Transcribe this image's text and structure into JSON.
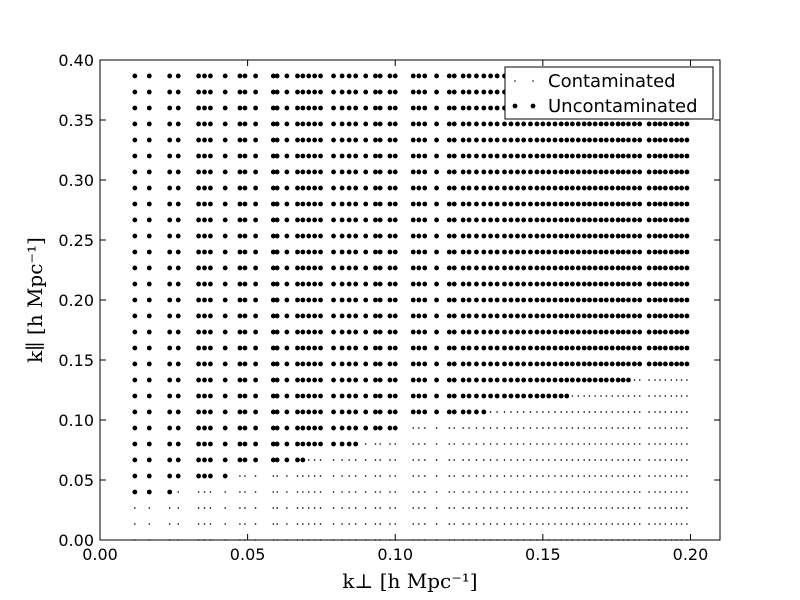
{
  "chart_data": {
    "type": "scatter",
    "xlabel": "k⊥ [h Mpc⁻¹]",
    "ylabel": "k∥ [h Mpc⁻¹]",
    "xlim": [
      0.0,
      0.21
    ],
    "ylim": [
      0.0,
      0.4
    ],
    "x_ticks": [
      "0.00",
      "0.05",
      "0.10",
      "0.15",
      "0.20"
    ],
    "y_ticks": [
      "0.00",
      "0.05",
      "0.10",
      "0.15",
      "0.20",
      "0.25",
      "0.30",
      "0.35",
      "0.40"
    ],
    "legend_position": "top-right",
    "grid": false,
    "series": [
      {
        "name": "Contaminated",
        "marker": "small dot",
        "color": "#000000",
        "description": "points with k_parallel below the wedge boundary"
      },
      {
        "name": "Uncontaminated",
        "marker": "large dot",
        "color": "#000000",
        "description": "points with k_parallel above the wedge boundary"
      }
    ],
    "k_parallel_values": [
      0.0,
      0.0133,
      0.0267,
      0.04,
      0.0533,
      0.0667,
      0.08,
      0.0933,
      0.1067,
      0.12,
      0.1333,
      0.1467,
      0.16,
      0.1733,
      0.1867,
      0.2,
      0.2133,
      0.2267,
      0.24,
      0.2533,
      0.2667,
      0.28,
      0.2933,
      0.3067,
      0.32,
      0.3333,
      0.3467,
      0.36,
      0.3733,
      0.3867
    ],
    "k_perp_columns": [
      {
        "x": 0.0118,
        "n": 1
      },
      {
        "x": 0.0167,
        "n": 1
      },
      {
        "x": 0.0236,
        "n": 1
      },
      {
        "x": 0.0265,
        "n": 1
      },
      {
        "x": 0.0334,
        "n": 1
      },
      {
        "x": 0.0354,
        "n": 1
      },
      {
        "x": 0.0374,
        "n": 1
      },
      {
        "x": 0.0424,
        "n": 1
      },
      {
        "x": 0.0474,
        "n": 1
      },
      {
        "x": 0.0491,
        "n": 1
      },
      {
        "x": 0.0527,
        "n": 1
      },
      {
        "x": 0.0587,
        "n": 1
      },
      {
        "x": 0.06,
        "n": 1
      },
      {
        "x": 0.0633,
        "n": 1
      },
      {
        "x": 0.0669,
        "n": 1
      },
      {
        "x": 0.0687,
        "n": 1
      },
      {
        "x": 0.0707,
        "n": 1
      },
      {
        "x": 0.0727,
        "n": 1
      },
      {
        "x": 0.0747,
        "n": 1
      },
      {
        "x": 0.0791,
        "n": 1
      },
      {
        "x": 0.082,
        "n": 1
      },
      {
        "x": 0.0844,
        "n": 1
      },
      {
        "x": 0.0866,
        "n": 1
      },
      {
        "x": 0.09,
        "n": 1
      },
      {
        "x": 0.0933,
        "n": 1
      },
      {
        "x": 0.0949,
        "n": 1
      },
      {
        "x": 0.0982,
        "n": 1
      },
      {
        "x": 0.1,
        "n": 1
      },
      {
        "x": 0.1061,
        "n": 1
      },
      {
        "x": 0.108,
        "n": 1
      },
      {
        "x": 0.11,
        "n": 1
      },
      {
        "x": 0.114,
        "n": 1
      },
      {
        "x": 0.1183,
        "n": 1
      },
      {
        "x": 0.12,
        "n": 1
      },
      {
        "x": 0.123,
        "n": 1
      },
      {
        "x": 0.125,
        "n": 1
      },
      {
        "x": 0.1275,
        "n": 1
      },
      {
        "x": 0.13,
        "n": 1
      },
      {
        "x": 0.1323,
        "n": 1
      },
      {
        "x": 0.1345,
        "n": 1
      },
      {
        "x": 0.137,
        "n": 1
      },
      {
        "x": 0.1392,
        "n": 1
      },
      {
        "x": 0.1414,
        "n": 1
      },
      {
        "x": 0.1435,
        "n": 1
      },
      {
        "x": 0.1458,
        "n": 1
      },
      {
        "x": 0.148,
        "n": 1
      },
      {
        "x": 0.15,
        "n": 1
      },
      {
        "x": 0.152,
        "n": 1
      },
      {
        "x": 0.1541,
        "n": 1
      },
      {
        "x": 0.1562,
        "n": 1
      },
      {
        "x": 0.1581,
        "n": 1
      },
      {
        "x": 0.16,
        "n": 1
      },
      {
        "x": 0.162,
        "n": 1
      },
      {
        "x": 0.164,
        "n": 1
      },
      {
        "x": 0.1658,
        "n": 1
      },
      {
        "x": 0.1677,
        "n": 1
      },
      {
        "x": 0.1697,
        "n": 1
      },
      {
        "x": 0.1715,
        "n": 1
      },
      {
        "x": 0.1735,
        "n": 1
      },
      {
        "x": 0.1755,
        "n": 1
      },
      {
        "x": 0.1772,
        "n": 1
      },
      {
        "x": 0.179,
        "n": 1
      },
      {
        "x": 0.181,
        "n": 1
      },
      {
        "x": 0.1828,
        "n": 1
      },
      {
        "x": 0.186,
        "n": 1
      },
      {
        "x": 0.188,
        "n": 1
      },
      {
        "x": 0.1897,
        "n": 1
      },
      {
        "x": 0.1915,
        "n": 1
      },
      {
        "x": 0.1935,
        "n": 1
      },
      {
        "x": 0.1953,
        "n": 1
      },
      {
        "x": 0.197,
        "n": 1
      },
      {
        "x": 0.1988,
        "n": 1
      }
    ],
    "wedge_boundary": [
      {
        "x": 0.0,
        "y": 0.03
      },
      {
        "x": 0.025,
        "y": 0.04
      },
      {
        "x": 0.05,
        "y": 0.055
      },
      {
        "x": 0.075,
        "y": 0.07
      },
      {
        "x": 0.1,
        "y": 0.09
      },
      {
        "x": 0.12,
        "y": 0.102
      },
      {
        "x": 0.14,
        "y": 0.11
      },
      {
        "x": 0.16,
        "y": 0.12
      },
      {
        "x": 0.18,
        "y": 0.133
      },
      {
        "x": 0.2,
        "y": 0.146
      }
    ],
    "max_k_parallel_by_k_perp": [
      {
        "x": 0.0,
        "y": 0.3867
      },
      {
        "x": 0.15,
        "y": 0.3867
      },
      {
        "x": 0.151,
        "y": 0.36
      },
      {
        "x": 0.175,
        "y": 0.3467
      },
      {
        "x": 0.21,
        "y": 0.3467
      }
    ],
    "legend_entries": [
      "Contaminated",
      "Uncontaminated"
    ]
  }
}
